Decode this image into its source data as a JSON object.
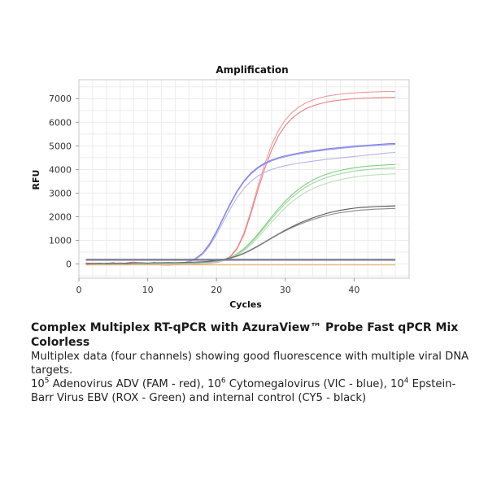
{
  "chart_data": {
    "type": "line",
    "title": "Amplification",
    "xlabel": "Cycles",
    "ylabel": "RFU",
    "xlim": [
      0,
      48
    ],
    "ylim": [
      -600,
      7800
    ],
    "x_ticks": [
      0,
      10,
      20,
      30,
      40
    ],
    "y_ticks": [
      0,
      1000,
      2000,
      3000,
      4000,
      5000,
      6000,
      7000
    ],
    "grid": true,
    "legend": "none",
    "x": [
      1,
      2,
      3,
      4,
      5,
      6,
      7,
      8,
      9,
      10,
      11,
      12,
      13,
      14,
      15,
      16,
      17,
      18,
      19,
      20,
      21,
      22,
      23,
      24,
      25,
      26,
      27,
      28,
      29,
      30,
      31,
      32,
      33,
      34,
      35,
      36,
      37,
      38,
      39,
      40,
      41,
      42,
      43,
      44,
      45,
      46
    ],
    "series": [
      {
        "color": "#f09a9a",
        "values": [
          -5,
          15,
          -10,
          20,
          -20,
          30,
          -10,
          40,
          15,
          -25,
          10,
          -40,
          -55,
          -20,
          -5,
          0,
          5,
          15,
          35,
          70,
          150,
          320,
          680,
          1320,
          2240,
          3260,
          4220,
          5030,
          5650,
          6100,
          6420,
          6650,
          6820,
          6940,
          7030,
          7100,
          7150,
          7190,
          7220,
          7240,
          7260,
          7275,
          7285,
          7295,
          7300,
          7305
        ]
      },
      {
        "color": "#e87f7f",
        "values": [
          40,
          30,
          20,
          10,
          60,
          -20,
          50,
          80,
          30,
          10,
          70,
          -50,
          -30,
          -10,
          0,
          5,
          10,
          20,
          35,
          65,
          140,
          300,
          640,
          1250,
          2130,
          3100,
          4030,
          4810,
          5420,
          5860,
          6170,
          6400,
          6570,
          6690,
          6780,
          6850,
          6900,
          6940,
          6970,
          6990,
          7010,
          7025,
          7035,
          7045,
          7050,
          7055
        ]
      },
      {
        "color": "#9a9af0",
        "values": [
          -10,
          20,
          -20,
          30,
          -5,
          40,
          -30,
          25,
          10,
          -15,
          20,
          -20,
          -10,
          0,
          30,
          90,
          210,
          440,
          820,
          1340,
          1930,
          2520,
          3050,
          3480,
          3810,
          4050,
          4230,
          4360,
          4460,
          4540,
          4600,
          4660,
          4710,
          4750,
          4790,
          4830,
          4860,
          4890,
          4920,
          4950,
          4970,
          4990,
          5010,
          5030,
          5050,
          5060
        ]
      },
      {
        "color": "#7f7fe8",
        "values": [
          20,
          -10,
          30,
          -20,
          10,
          -30,
          40,
          -10,
          20,
          10,
          -20,
          30,
          0,
          20,
          45,
          110,
          240,
          470,
          860,
          1380,
          1970,
          2560,
          3090,
          3520,
          3850,
          4090,
          4270,
          4400,
          4500,
          4580,
          4640,
          4700,
          4750,
          4790,
          4830,
          4870,
          4900,
          4930,
          4960,
          4990,
          5010,
          5030,
          5050,
          5070,
          5090,
          5100
        ]
      },
      {
        "color": "#b4b4ea",
        "values": [
          0,
          10,
          -10,
          20,
          -15,
          15,
          -5,
          10,
          5,
          -5,
          10,
          -10,
          0,
          15,
          35,
          90,
          200,
          410,
          760,
          1250,
          1790,
          2330,
          2810,
          3200,
          3500,
          3720,
          3880,
          4000,
          4090,
          4160,
          4220,
          4270,
          4310,
          4350,
          4390,
          4430,
          4460,
          4490,
          4520,
          4550,
          4580,
          4610,
          4640,
          4670,
          4700,
          4720
        ]
      },
      {
        "color": "#7fd07f",
        "values": [
          5,
          -10,
          15,
          -5,
          10,
          -15,
          5,
          10,
          -5,
          5,
          -10,
          10,
          0,
          5,
          10,
          15,
          25,
          40,
          65,
          100,
          170,
          270,
          430,
          650,
          930,
          1260,
          1620,
          1990,
          2340,
          2660,
          2940,
          3180,
          3380,
          3550,
          3690,
          3800,
          3890,
          3960,
          4020,
          4070,
          4110,
          4140,
          4160,
          4180,
          4200,
          4210
        ]
      },
      {
        "color": "#9ed89e",
        "values": [
          -5,
          10,
          -15,
          5,
          -10,
          15,
          -5,
          5,
          10,
          -5,
          5,
          -10,
          0,
          5,
          10,
          15,
          22,
          35,
          58,
          92,
          155,
          250,
          400,
          610,
          880,
          1200,
          1550,
          1910,
          2250,
          2560,
          2830,
          3060,
          3260,
          3420,
          3550,
          3660,
          3750,
          3820,
          3880,
          3930,
          3970,
          4000,
          4020,
          4040,
          4055,
          4065
        ]
      },
      {
        "color": "#b7e0b7",
        "values": [
          0,
          5,
          -5,
          10,
          -10,
          5,
          0,
          5,
          -5,
          0,
          5,
          -5,
          0,
          5,
          10,
          14,
          20,
          32,
          54,
          86,
          145,
          232,
          370,
          560,
          810,
          1110,
          1440,
          1770,
          2090,
          2380,
          2640,
          2860,
          3040,
          3190,
          3310,
          3410,
          3500,
          3570,
          3630,
          3680,
          3720,
          3750,
          3770,
          3790,
          3805,
          3815
        ]
      },
      {
        "color": "#555555",
        "values": [
          10,
          20,
          30,
          25,
          35,
          40,
          30,
          45,
          50,
          40,
          55,
          50,
          60,
          55,
          65,
          70,
          80,
          95,
          115,
          145,
          190,
          255,
          345,
          460,
          600,
          760,
          930,
          1100,
          1270,
          1430,
          1580,
          1720,
          1840,
          1950,
          2050,
          2140,
          2210,
          2270,
          2320,
          2360,
          2390,
          2410,
          2430,
          2440,
          2450,
          2460
        ]
      },
      {
        "color": "#8a8a8a",
        "values": [
          -10,
          0,
          10,
          5,
          15,
          20,
          10,
          25,
          30,
          20,
          35,
          30,
          40,
          35,
          45,
          50,
          60,
          75,
          95,
          125,
          170,
          235,
          325,
          440,
          580,
          740,
          910,
          1080,
          1250,
          1400,
          1540,
          1670,
          1780,
          1880,
          1970,
          2050,
          2120,
          2170,
          2210,
          2250,
          2280,
          2300,
          2320,
          2330,
          2340,
          2350
        ]
      },
      {
        "color": "#777777",
        "values": [
          200,
          200,
          200,
          200,
          200,
          200,
          200,
          200,
          200,
          200,
          200,
          200,
          200,
          200,
          200,
          200,
          200,
          200,
          200,
          200,
          200,
          200,
          200,
          200,
          200,
          200,
          200,
          200,
          200,
          200,
          200,
          200,
          200,
          200,
          200,
          200,
          200,
          200,
          200,
          200,
          200,
          200,
          200,
          200,
          200,
          200
        ]
      },
      {
        "color": "#6a6a9a",
        "values": [
          160,
          160,
          160,
          160,
          160,
          160,
          160,
          160,
          160,
          160,
          160,
          160,
          160,
          160,
          160,
          160,
          160,
          160,
          160,
          160,
          160,
          160,
          160,
          160,
          160,
          160,
          160,
          160,
          160,
          160,
          160,
          160,
          160,
          160,
          160,
          160,
          160,
          160,
          160,
          160,
          160,
          160,
          160,
          160,
          160,
          160
        ]
      },
      {
        "color": "#e8b46a",
        "values": [
          -40,
          -40,
          -40,
          -40,
          -40,
          -40,
          -40,
          -40,
          -40,
          -40,
          -40,
          -40,
          -40,
          -40,
          -40,
          -40,
          -40,
          -40,
          -40,
          -40,
          -40,
          -40,
          -40,
          -40,
          -40,
          -40,
          -40,
          -40,
          -40,
          -40,
          -40,
          -40,
          -40,
          -40,
          -40,
          -40,
          -40,
          -40,
          -40,
          -40,
          -40,
          -40,
          -40,
          -40,
          -40,
          -40
        ]
      }
    ]
  },
  "caption": {
    "title": "Complex Multiplex RT-qPCR with AzuraView™ Probe Fast qPCR Mix Colorless",
    "line1": "Multiplex data (four channels) showing good fluorescence with multiple viral DNA targets.",
    "seg1": "10",
    "sup1": "5",
    "seg2": " Adenovirus ADV (FAM - red), 10",
    "sup2": "6",
    "seg3": " Cytomegalovirus (VIC - blue), 10",
    "sup3": "4",
    "seg4": " Epstein-Barr Virus EBV (ROX - Green) and internal control (CY5 - black)"
  }
}
